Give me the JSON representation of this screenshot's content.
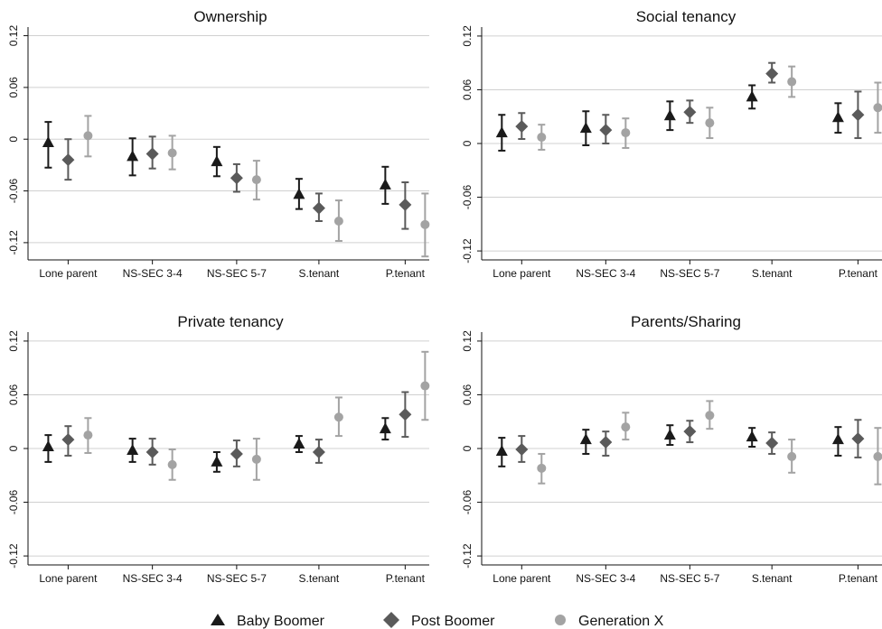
{
  "legend": [
    {
      "label": "Baby Boomer",
      "marker": "triangle",
      "color": "#1a1a1a"
    },
    {
      "label": "Post Boomer",
      "marker": "diamond",
      "color": "#5a5a5a"
    },
    {
      "label": "Generation X",
      "marker": "circle",
      "color": "#a3a3a3"
    }
  ],
  "chart_data": [
    {
      "type": "scatter",
      "title": "Ownership",
      "categories": [
        "Lone parent",
        "NS-SEC 3-4",
        "NS-SEC 5-7",
        "S.tenant",
        "P.tenant"
      ],
      "ylim": [
        -0.14,
        0.13
      ],
      "yticks": [
        "0.12",
        "0.06",
        "0",
        "-0.06",
        "-0.12"
      ],
      "ytick_values": [
        0.12,
        0.06,
        0,
        -0.06,
        -0.12
      ],
      "grid": true,
      "series": [
        {
          "name": "Baby Boomer",
          "values": [
            -0.004,
            -0.02,
            -0.026,
            -0.064,
            -0.053
          ],
          "lower": [
            -0.033,
            -0.042,
            -0.043,
            -0.081,
            -0.075
          ],
          "upper": [
            0.02,
            0.001,
            -0.009,
            -0.046,
            -0.032
          ]
        },
        {
          "name": "Post Boomer",
          "values": [
            -0.024,
            -0.017,
            -0.045,
            -0.08,
            -0.076
          ],
          "lower": [
            -0.047,
            -0.034,
            -0.061,
            -0.095,
            -0.104
          ],
          "upper": [
            0.0,
            0.003,
            -0.029,
            -0.063,
            -0.05
          ]
        },
        {
          "name": "Generation X",
          "values": [
            0.004,
            -0.016,
            -0.047,
            -0.095,
            -0.099
          ],
          "lower": [
            -0.02,
            -0.035,
            -0.07,
            -0.118,
            -0.136
          ],
          "upper": [
            0.027,
            0.004,
            -0.025,
            -0.071,
            -0.063
          ]
        }
      ]
    },
    {
      "type": "scatter",
      "title": "Social tenancy",
      "categories": [
        "Lone parent",
        "NS-SEC 3-4",
        "NS-SEC 5-7",
        "S.tenant",
        "P.tenant"
      ],
      "ylim": [
        -0.13,
        0.13
      ],
      "yticks": [
        "0.12",
        "0.06",
        "0",
        "-0.06",
        "-0.12"
      ],
      "ytick_values": [
        0.12,
        0.06,
        0,
        -0.06,
        -0.12
      ],
      "grid": true,
      "series": [
        {
          "name": "Baby Boomer",
          "values": [
            0.012,
            0.017,
            0.031,
            0.052,
            0.029
          ],
          "lower": [
            -0.008,
            -0.002,
            0.015,
            0.039,
            0.012
          ],
          "upper": [
            0.032,
            0.036,
            0.047,
            0.065,
            0.045
          ]
        },
        {
          "name": "Post Boomer",
          "values": [
            0.019,
            0.015,
            0.035,
            0.078,
            0.032
          ],
          "lower": [
            0.005,
            0.0,
            0.023,
            0.068,
            0.006
          ],
          "upper": [
            0.034,
            0.032,
            0.048,
            0.09,
            0.058
          ]
        },
        {
          "name": "Generation X",
          "values": [
            0.007,
            0.012,
            0.023,
            0.069,
            0.04
          ],
          "lower": [
            -0.007,
            -0.005,
            0.006,
            0.052,
            0.012
          ],
          "upper": [
            0.021,
            0.028,
            0.04,
            0.086,
            0.068
          ]
        }
      ]
    },
    {
      "type": "scatter",
      "title": "Private tenancy",
      "categories": [
        "Lone parent",
        "NS-SEC 3-4",
        "NS-SEC 5-7",
        "S.tenant",
        "P.tenant"
      ],
      "ylim": [
        -0.13,
        0.13
      ],
      "yticks": [
        "0.12",
        "0.06",
        "0",
        "-0.06",
        "-0.12"
      ],
      "ytick_values": [
        0.12,
        0.06,
        0,
        -0.06,
        -0.12
      ],
      "grid": true,
      "series": [
        {
          "name": "Baby Boomer",
          "values": [
            0.002,
            -0.002,
            -0.015,
            0.005,
            0.022
          ],
          "lower": [
            -0.015,
            -0.015,
            -0.026,
            -0.004,
            0.01
          ],
          "upper": [
            0.015,
            0.011,
            -0.004,
            0.014,
            0.034
          ]
        },
        {
          "name": "Post Boomer",
          "values": [
            0.01,
            -0.004,
            -0.006,
            -0.004,
            0.038
          ],
          "lower": [
            -0.008,
            -0.018,
            -0.02,
            -0.016,
            0.013
          ],
          "upper": [
            0.025,
            0.011,
            0.009,
            0.01,
            0.063
          ]
        },
        {
          "name": "Generation X",
          "values": [
            0.015,
            -0.018,
            -0.012,
            0.035,
            0.07
          ],
          "lower": [
            -0.005,
            -0.035,
            -0.035,
            0.014,
            0.032
          ],
          "upper": [
            0.034,
            -0.001,
            0.011,
            0.057,
            0.108
          ]
        }
      ]
    },
    {
      "type": "scatter",
      "title": "Parents/Sharing",
      "categories": [
        "Lone parent",
        "NS-SEC 3-4",
        "NS-SEC 5-7",
        "S.tenant",
        "P.tenant"
      ],
      "ylim": [
        -0.13,
        0.13
      ],
      "yticks": [
        "0.12",
        "0.06",
        "0",
        "-0.06",
        "-0.12"
      ],
      "ytick_values": [
        0.12,
        0.06,
        0,
        -0.06,
        -0.12
      ],
      "grid": true,
      "series": [
        {
          "name": "Baby Boomer",
          "values": [
            -0.003,
            0.01,
            0.015,
            0.013,
            0.01
          ],
          "lower": [
            -0.02,
            -0.006,
            0.004,
            0.002,
            -0.008
          ],
          "upper": [
            0.012,
            0.021,
            0.026,
            0.023,
            0.024
          ]
        },
        {
          "name": "Post Boomer",
          "values": [
            -0.001,
            0.007,
            0.019,
            0.006,
            0.011
          ],
          "lower": [
            -0.015,
            -0.008,
            0.007,
            -0.006,
            -0.01
          ],
          "upper": [
            0.014,
            0.019,
            0.031,
            0.018,
            0.032
          ]
        },
        {
          "name": "Generation X",
          "values": [
            -0.022,
            0.024,
            0.037,
            -0.009,
            -0.009
          ],
          "lower": [
            -0.039,
            0.01,
            0.022,
            -0.027,
            -0.04
          ],
          "upper": [
            -0.006,
            0.04,
            0.053,
            0.01,
            0.023
          ]
        }
      ]
    }
  ]
}
